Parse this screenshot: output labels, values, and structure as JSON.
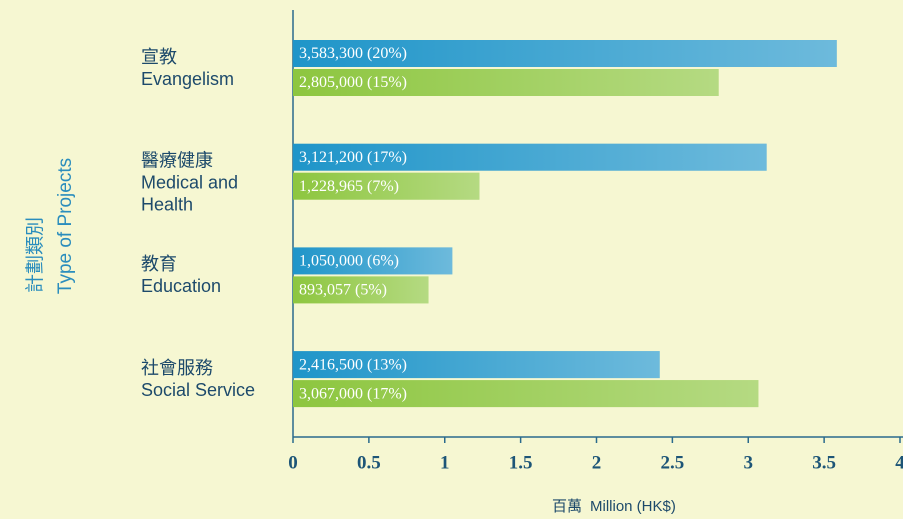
{
  "chart_data": {
    "type": "barh",
    "ylabel": [
      "計劃類別",
      "Type of Projects"
    ],
    "xlabel": [
      "百萬",
      "Million (HK$)"
    ],
    "categories": [
      [
        "宣教",
        "Evangelism"
      ],
      [
        "醫療健康",
        "Medical and",
        "Health"
      ],
      [
        "教育",
        "Education"
      ],
      [
        "社會服務",
        "Social Service"
      ]
    ],
    "series": [
      {
        "color": "#1f95c9",
        "values": [
          3.5833,
          3.1212,
          1.05,
          2.4165
        ],
        "value_labels": [
          "3,583,300 (20%)",
          "3,121,200 (17%)",
          "1,050,000 (6%)",
          "2,416,500 (13%)"
        ]
      },
      {
        "color": "#8dc63f",
        "values": [
          2.805,
          1.228965,
          0.893057,
          3.067
        ],
        "value_labels": [
          "2,805,000 (15%)",
          "1,228,965 (7%)",
          "893,057 (5%)",
          "3,067,000 (17%)"
        ]
      }
    ],
    "xlim": [
      0,
      4
    ],
    "xticks": [
      0,
      0.5,
      1,
      1.5,
      2,
      2.5,
      3,
      3.5,
      4
    ]
  }
}
